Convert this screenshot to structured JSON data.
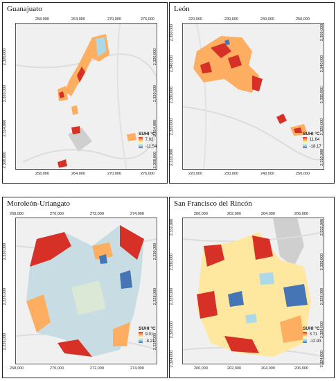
{
  "panels": [
    {
      "title": "Guanajuato",
      "xticks_top": [
        "258,000",
        "264,000",
        "270,000",
        "276,000"
      ],
      "xticks_bottom": [
        "258,000",
        "264,000",
        "270,000",
        "276,000"
      ],
      "yticks_left": [
        "2,326,000",
        "2,320,000",
        "2,314,000",
        "2,308,000"
      ],
      "yticks_right": [
        "2,326,000",
        "2,320,000",
        "2,314,000",
        "2,308,000"
      ],
      "legend_title": "SUHI °C",
      "legend_max": "7.92",
      "legend_min": "-11.54"
    },
    {
      "title": "León",
      "xticks_top": [
        "220,000",
        "230,000",
        "240,000",
        "250,000"
      ],
      "xticks_bottom": [
        "220,000",
        "230,000",
        "240,000",
        "250,000"
      ],
      "yticks_left": [
        "2,350,000",
        "2,340,000",
        "2,330,000",
        "2,320,000",
        "2,310,000"
      ],
      "yticks_right": [
        "2,350,000",
        "2,340,000",
        "2,330,000",
        "2,320,000",
        "2,310,000"
      ],
      "legend_title": "SUHI °C",
      "legend_max": "11.64",
      "legend_min": "-18.17"
    },
    {
      "title": "Moroleón-Uriangato",
      "xticks_top": [
        "268,000",
        "270,000",
        "272,000",
        "274,000"
      ],
      "xticks_bottom": [
        "268,000",
        "270,000",
        "272,000",
        "274,000"
      ],
      "yticks_left": [
        "2,230,000",
        "2,228,000",
        "2,226,000"
      ],
      "yticks_right": [
        "2,230,000",
        "2,228,000",
        "2,226,000"
      ],
      "legend_title": "SUHI °C",
      "legend_max": "9.01",
      "legend_min": "-8.21"
    },
    {
      "title": "San Francisco del Rincón",
      "xticks_top": [
        "200,000",
        "202,000",
        "204,000",
        "206,000"
      ],
      "xticks_bottom": [
        "200,000",
        "202,000",
        "204,000",
        "206,000"
      ],
      "yticks_left": [
        "2,332,000",
        "2,330,000",
        "2,328,000",
        "2,326,000",
        "2,324,000"
      ],
      "yticks_right": [
        "2,332,000",
        "2,330,000",
        "2,328,000",
        "2,326,000",
        "2,324,000"
      ],
      "legend_title": "SUHI °C",
      "legend_max": "3.71",
      "legend_min": "-12.93"
    }
  ],
  "colors": {
    "hot": "#d73027",
    "warm": "#fdae61",
    "neutral": "#ffffbf",
    "cool": "#abd9e9",
    "cold": "#4575b4",
    "background": "#f0f0f0"
  }
}
